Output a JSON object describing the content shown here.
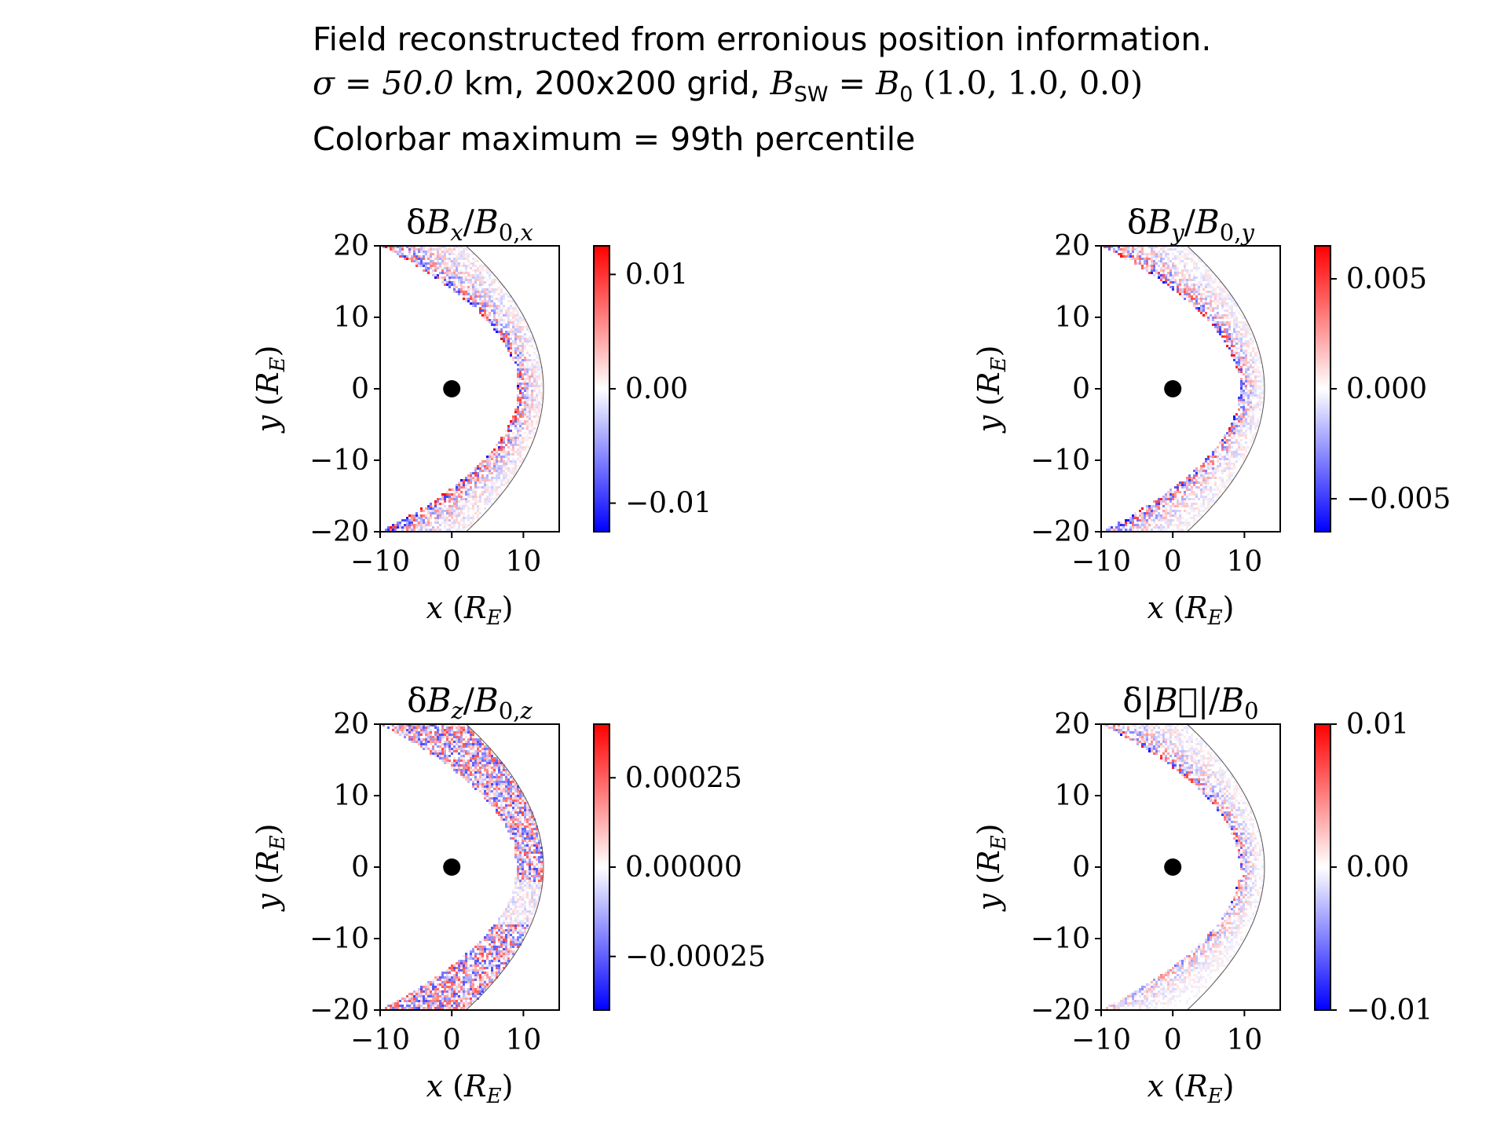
{
  "title": {
    "line1": "Field reconstructed from erronious position information.",
    "line2_sigma": "σ = 50.0",
    "line2_text": " km, 200x200 grid, ",
    "line2_b": "B",
    "line2_sub": "SW",
    "line2_eq": " = ",
    "line2_b0": "B",
    "line2_b0sub": "0",
    "line2_vec": " (1.0, 1.0, 0.0)",
    "line3": "Colorbar maximum = 99th percentile"
  },
  "colors": {
    "positive": "#ff0000",
    "zero": "#ffffff",
    "negative": "#0000ff",
    "boundary": "#555555",
    "earth": "#000000"
  },
  "chart_data": [
    {
      "type": "heatmap",
      "id": "bx",
      "title": "δB_x/B_0,x",
      "xlabel": "x (R_E)",
      "ylabel": "y (R_E)",
      "xlim": [
        -10,
        15
      ],
      "ylim": [
        -20,
        20
      ],
      "xticks": [
        -10,
        0,
        10
      ],
      "xtick_labels": [
        "−10",
        "0",
        "10"
      ],
      "yticks": [
        -20,
        -10,
        0,
        10,
        20
      ],
      "ytick_labels": [
        "−20",
        "−10",
        "0",
        "10",
        "20"
      ],
      "colormap": "bwr",
      "colorbar": {
        "range": [
          -0.0125,
          0.0125
        ],
        "ticks": [
          -0.01,
          0.0,
          0.01
        ],
        "tick_labels": [
          "−0.01",
          "0.00",
          "0.01"
        ]
      },
      "earth": {
        "x": 0,
        "y": 0
      }
    },
    {
      "type": "heatmap",
      "id": "by",
      "title": "δB_y/B_0,y",
      "xlabel": "x (R_E)",
      "ylabel": "y (R_E)",
      "xlim": [
        -10,
        15
      ],
      "ylim": [
        -20,
        20
      ],
      "xticks": [
        -10,
        0,
        10
      ],
      "xtick_labels": [
        "−10",
        "0",
        "10"
      ],
      "yticks": [
        -20,
        -10,
        0,
        10,
        20
      ],
      "ytick_labels": [
        "−20",
        "−10",
        "0",
        "10",
        "20"
      ],
      "colormap": "bwr",
      "colorbar": {
        "range": [
          -0.0065,
          0.0065
        ],
        "ticks": [
          -0.005,
          0.0,
          0.005
        ],
        "tick_labels": [
          "−0.005",
          "0.000",
          "0.005"
        ]
      },
      "earth": {
        "x": 0,
        "y": 0
      }
    },
    {
      "type": "heatmap",
      "id": "bz",
      "title": "δB_z/B_0,z",
      "xlabel": "x (R_E)",
      "ylabel": "y (R_E)",
      "xlim": [
        -10,
        15
      ],
      "ylim": [
        -20,
        20
      ],
      "xticks": [
        -10,
        0,
        10
      ],
      "xtick_labels": [
        "−10",
        "0",
        "10"
      ],
      "yticks": [
        -20,
        -10,
        0,
        10,
        20
      ],
      "ytick_labels": [
        "−20",
        "−10",
        "0",
        "10",
        "20"
      ],
      "colormap": "bwr",
      "colorbar": {
        "range": [
          -0.0004,
          0.0004
        ],
        "ticks": [
          -0.00025,
          0.0,
          0.00025
        ],
        "tick_labels": [
          "−0.00025",
          "0.00000",
          "0.00025"
        ]
      },
      "earth": {
        "x": 0,
        "y": 0
      }
    },
    {
      "type": "heatmap",
      "id": "bmag",
      "title": "δ|B|/B_0",
      "xlabel": "x (R_E)",
      "ylabel": "y (R_E)",
      "xlim": [
        -10,
        15
      ],
      "ylim": [
        -20,
        20
      ],
      "xticks": [
        -10,
        0,
        10
      ],
      "xtick_labels": [
        "−10",
        "0",
        "10"
      ],
      "yticks": [
        -20,
        -10,
        0,
        10,
        20
      ],
      "ytick_labels": [
        "−20",
        "−10",
        "0",
        "10",
        "20"
      ],
      "colormap": "bwr",
      "colorbar": {
        "range": [
          -0.01,
          0.01
        ],
        "ticks": [
          -0.01,
          0.0,
          0.01
        ],
        "tick_labels": [
          "−0.01",
          "0.00",
          "0.01"
        ]
      },
      "earth": {
        "x": 0,
        "y": 0
      }
    }
  ]
}
